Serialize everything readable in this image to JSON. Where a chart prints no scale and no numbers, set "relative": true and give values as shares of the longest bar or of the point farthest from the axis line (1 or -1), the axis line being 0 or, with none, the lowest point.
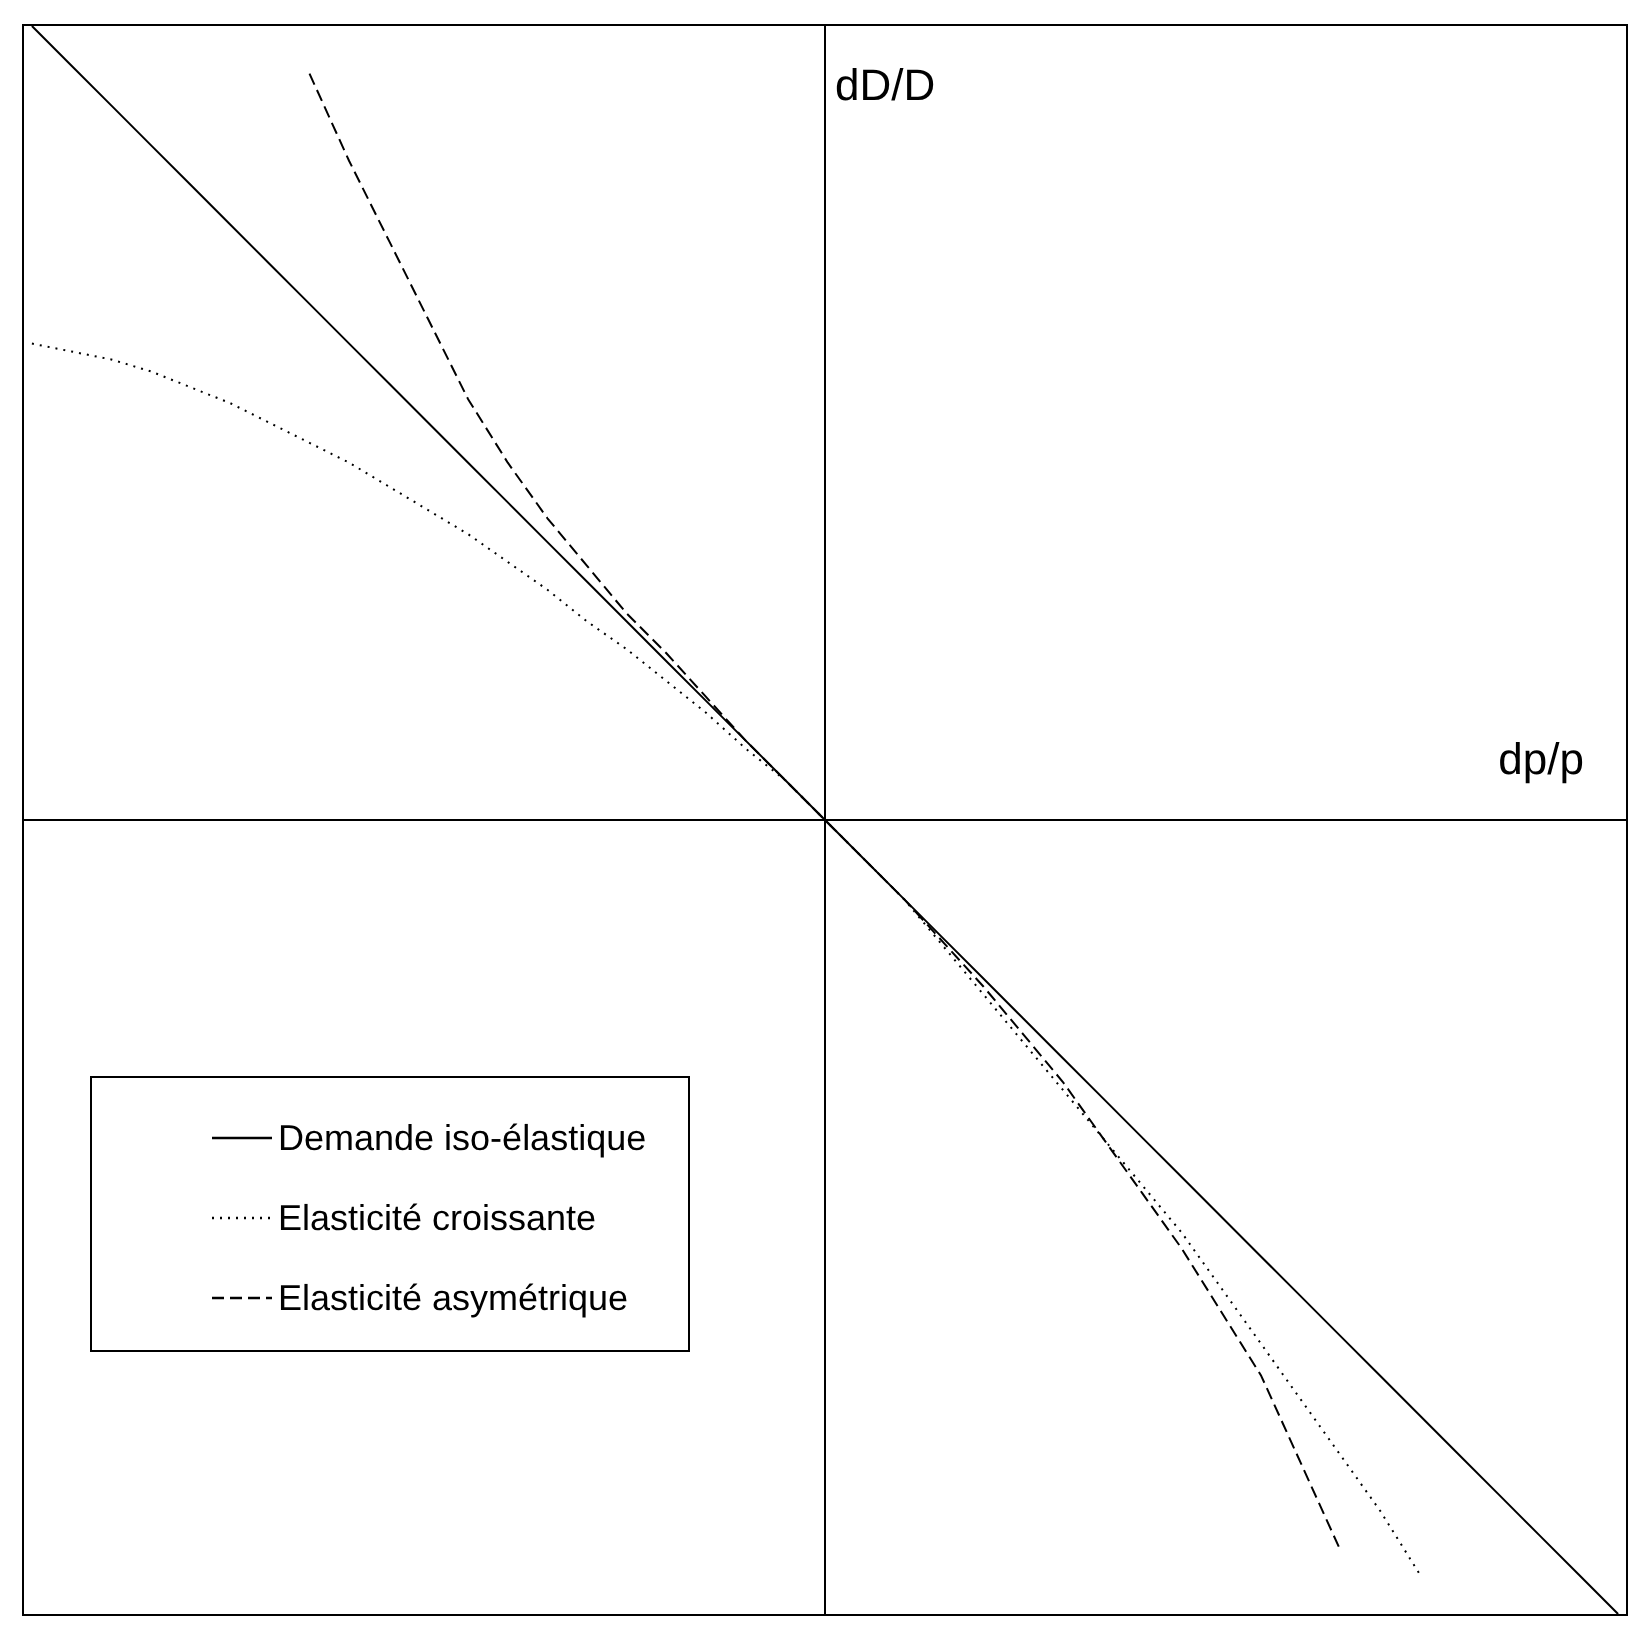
{
  "chart_data": {
    "type": "line",
    "relative": true,
    "xlabel": "dp/p",
    "ylabel": "dD/D",
    "legend": "left",
    "grid": false,
    "marker": "none",
    "categories": [
      null,
      null,
      null,
      null,
      null,
      null,
      null,
      null,
      null,
      null,
      null,
      null,
      null,
      null,
      null,
      null,
      null,
      null,
      null,
      null,
      null,
      null,
      null,
      null,
      null,
      null,
      null,
      null,
      null,
      null,
      null,
      null,
      null,
      null,
      null,
      null,
      null,
      null,
      null,
      null,
      null
    ],
    "series": [
      {
        "name": "Demande iso-élastique",
        "color": "#000000",
        "line_style": "solid",
        "values": [
          1,
          0.95,
          0.9,
          0.85,
          0.8,
          0.75,
          0.7,
          0.65,
          0.6,
          0.55,
          0.5,
          0.45,
          0.4,
          0.35,
          0.3,
          0.25,
          0.2,
          0.15,
          0.1,
          0.05,
          0,
          -0.05,
          -0.1,
          -0.15,
          -0.2,
          -0.25,
          -0.3,
          -0.35,
          -0.4,
          -0.45,
          -0.5,
          -0.55,
          -0.6,
          -0.65,
          -0.7,
          -0.75,
          -0.8,
          -0.85,
          -0.9,
          -0.95,
          -1
        ]
      },
      {
        "name": "Elasticité croissante",
        "color": "#000000",
        "line_style": "dotted",
        "values": [
          0.6,
          0.59,
          0.58,
          0.565,
          0.545,
          0.525,
          0.5,
          0.475,
          0.45,
          0.42,
          0.39,
          0.36,
          0.325,
          0.29,
          0.25,
          0.215,
          0.175,
          0.135,
          0.09,
          0.05,
          0,
          -0.05,
          -0.1,
          -0.16,
          -0.22,
          -0.28,
          -0.34,
          -0.4,
          -0.46,
          -0.52,
          -0.59,
          -0.66,
          -0.73,
          -0.8,
          -0.87,
          -0.95,
          null,
          null,
          null,
          null,
          null
        ]
      },
      {
        "name": "Elasticité asymétrique",
        "color": "#000000",
        "line_style": "dashed",
        "values": [
          null,
          null,
          null,
          null,
          null,
          null,
          null,
          0.94,
          0.83,
          0.73,
          0.63,
          0.53,
          0.45,
          0.38,
          0.32,
          0.26,
          0.21,
          0.155,
          0.1,
          0.05,
          0,
          -0.05,
          -0.1,
          -0.155,
          -0.21,
          -0.27,
          -0.33,
          -0.4,
          -0.47,
          -0.54,
          -0.62,
          -0.7,
          -0.81,
          -0.92,
          null,
          null,
          null,
          null,
          null,
          null,
          null
        ]
      }
    ]
  }
}
